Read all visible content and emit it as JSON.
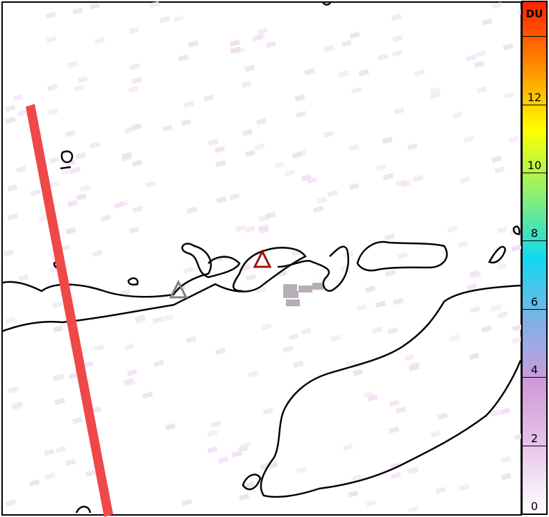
{
  "colorbar": {
    "unit": "DU",
    "ticks": [
      "0",
      "2",
      "4",
      "6",
      "8",
      "10",
      "12",
      ""
    ],
    "tick_values": [
      0,
      2,
      4,
      6,
      8,
      10,
      12,
      14
    ],
    "range": [
      0,
      15
    ],
    "colors": [
      "#ffffff",
      "#e8c8ec",
      "#d39ad9",
      "#7fb2e6",
      "#12d8f0",
      "#8ef070",
      "#ffff00",
      "#ff8c00",
      "#ff2000"
    ]
  },
  "map": {
    "swath_color": "#f04848",
    "volcano_active_color": "#a01010",
    "volcano_color": "#808080",
    "coastline_color": "#000000"
  }
}
